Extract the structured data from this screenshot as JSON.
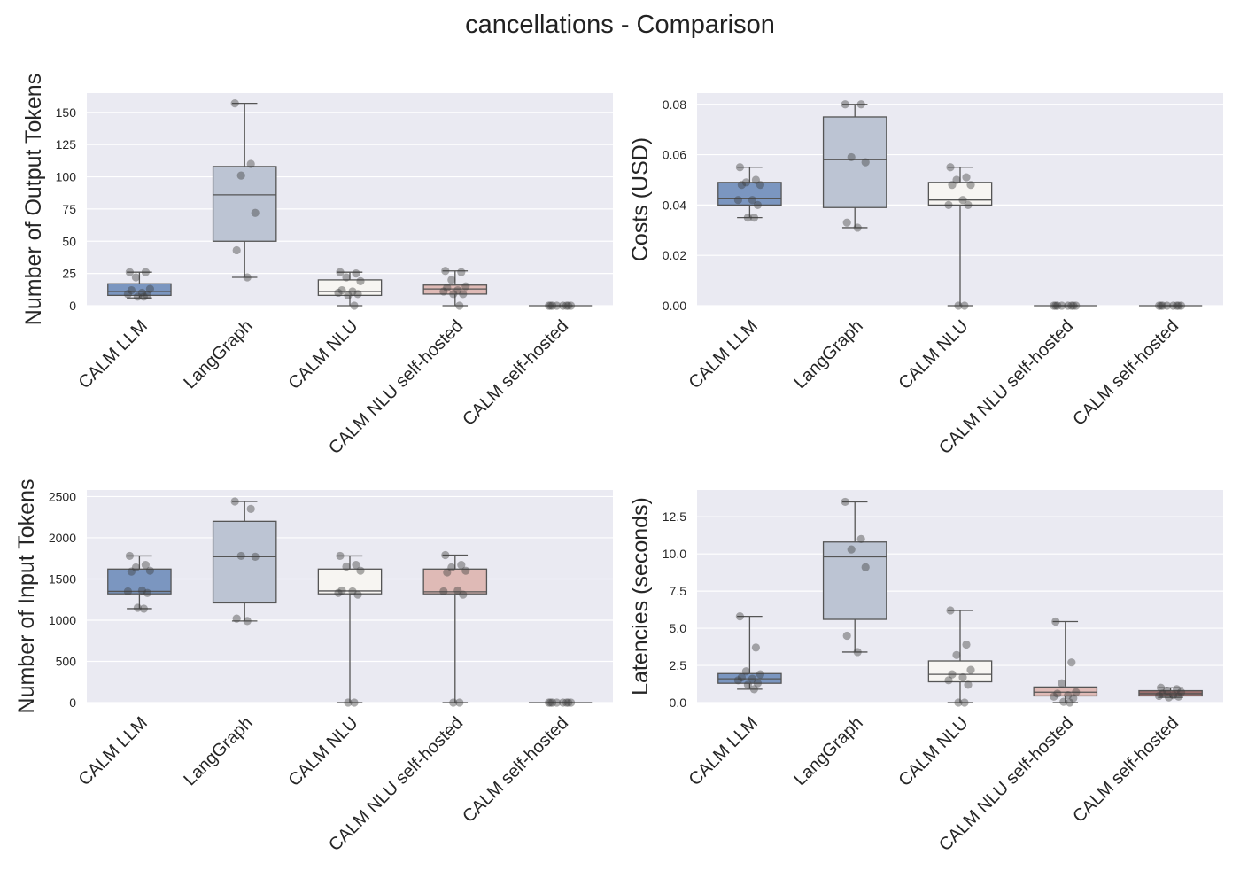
{
  "figure": {
    "title": "cancellations - Comparison"
  },
  "chart_data": [
    {
      "type": "box",
      "title": "",
      "xlabel": "",
      "ylabel": "Number of Output Tokens",
      "ylim": [
        0,
        165
      ],
      "yticks": [
        0,
        25,
        50,
        75,
        100,
        125,
        150
      ],
      "categories": [
        "CALM LLM",
        "LangGraph",
        "CALM NLU",
        "CALM NLU self-hosted",
        "CALM self-hosted"
      ],
      "colors": [
        "#7b96c0",
        "#bcc4d3",
        "#f7f5f2",
        "#dfbab6",
        "#9c6f6d"
      ],
      "boxes": [
        {
          "q1": 8,
          "median": 11,
          "q3": 17,
          "whislo": 6,
          "whishi": 26
        },
        {
          "q1": 50,
          "median": 86,
          "q3": 108,
          "whislo": 22,
          "whishi": 157
        },
        {
          "q1": 8,
          "median": 11,
          "q3": 20,
          "whislo": 0,
          "whishi": 26
        },
        {
          "q1": 9,
          "median": 13,
          "q3": 16,
          "whislo": 0,
          "whishi": 27
        },
        {
          "q1": 0,
          "median": 0,
          "q3": 0,
          "whislo": 0,
          "whishi": 0
        }
      ],
      "points": [
        [
          26,
          26,
          22,
          13,
          12,
          10,
          9,
          8,
          7,
          7
        ],
        [
          157,
          110,
          101,
          72,
          43,
          22
        ],
        [
          26,
          25,
          22,
          19,
          12,
          11,
          10,
          9,
          8,
          0
        ],
        [
          27,
          26,
          20,
          15,
          14,
          12,
          11,
          9,
          9,
          0
        ],
        [
          0,
          0,
          0,
          0,
          0,
          0,
          0,
          0
        ]
      ]
    },
    {
      "type": "box",
      "title": "",
      "xlabel": "",
      "ylabel": "Costs (USD)",
      "ylim": [
        0,
        0.0845
      ],
      "yticks": [
        0.0,
        0.02,
        0.04,
        0.06,
        0.08
      ],
      "yformat": 2,
      "categories": [
        "CALM LLM",
        "LangGraph",
        "CALM NLU",
        "CALM NLU self-hosted",
        "CALM self-hosted"
      ],
      "colors": [
        "#7b96c0",
        "#bcc4d3",
        "#f7f5f2",
        "#dfbab6",
        "#9c6f6d"
      ],
      "boxes": [
        {
          "q1": 0.04,
          "median": 0.0425,
          "q3": 0.049,
          "whislo": 0.035,
          "whishi": 0.055
        },
        {
          "q1": 0.039,
          "median": 0.058,
          "q3": 0.075,
          "whislo": 0.031,
          "whishi": 0.08
        },
        {
          "q1": 0.04,
          "median": 0.042,
          "q3": 0.049,
          "whislo": 0.0,
          "whishi": 0.055
        },
        {
          "q1": 0.0,
          "median": 0.0,
          "q3": 0.0,
          "whislo": 0.0,
          "whishi": 0.0
        },
        {
          "q1": 0.0,
          "median": 0.0,
          "q3": 0.0,
          "whislo": 0.0,
          "whishi": 0.0
        }
      ],
      "points": [
        [
          0.055,
          0.05,
          0.049,
          0.048,
          0.048,
          0.042,
          0.042,
          0.04,
          0.035,
          0.035
        ],
        [
          0.08,
          0.08,
          0.059,
          0.057,
          0.033,
          0.031
        ],
        [
          0.055,
          0.051,
          0.05,
          0.048,
          0.048,
          0.042,
          0.04,
          0.04,
          0.0,
          0.0
        ],
        [
          0.0,
          0.0,
          0.0,
          0.0,
          0.0,
          0.0,
          0.0,
          0.0
        ],
        [
          0.0,
          0.0,
          0.0,
          0.0,
          0.0,
          0.0,
          0.0,
          0.0
        ]
      ]
    },
    {
      "type": "box",
      "title": "",
      "xlabel": "",
      "ylabel": "Number of Input Tokens",
      "ylim": [
        0,
        2580
      ],
      "yticks": [
        0,
        500,
        1000,
        1500,
        2000,
        2500
      ],
      "categories": [
        "CALM LLM",
        "LangGraph",
        "CALM NLU",
        "CALM NLU self-hosted",
        "CALM self-hosted"
      ],
      "colors": [
        "#7b96c0",
        "#bcc4d3",
        "#f7f5f2",
        "#dfbab6",
        "#9c6f6d"
      ],
      "boxes": [
        {
          "q1": 1320,
          "median": 1350,
          "q3": 1620,
          "whislo": 1140,
          "whishi": 1780
        },
        {
          "q1": 1210,
          "median": 1770,
          "q3": 2200,
          "whislo": 990,
          "whishi": 2440
        },
        {
          "q1": 1320,
          "median": 1355,
          "q3": 1620,
          "whislo": 0,
          "whishi": 1780
        },
        {
          "q1": 1320,
          "median": 1345,
          "q3": 1620,
          "whislo": 0,
          "whishi": 1790
        },
        {
          "q1": 0,
          "median": 0,
          "q3": 0,
          "whislo": 0,
          "whishi": 0
        }
      ],
      "points": [
        [
          1780,
          1670,
          1640,
          1600,
          1590,
          1360,
          1350,
          1330,
          1150,
          1140
        ],
        [
          2440,
          2350,
          1780,
          1770,
          1020,
          990
        ],
        [
          1780,
          1670,
          1650,
          1600,
          1360,
          1350,
          1330,
          1310,
          0,
          0
        ],
        [
          1790,
          1670,
          1640,
          1600,
          1580,
          1360,
          1350,
          1310,
          0,
          0
        ],
        [
          0,
          0,
          0,
          0,
          0,
          0,
          0,
          0
        ]
      ]
    },
    {
      "type": "box",
      "title": "",
      "xlabel": "",
      "ylabel": "Latencies (seconds)",
      "ylim": [
        0,
        14.3
      ],
      "yticks": [
        0.0,
        2.5,
        5.0,
        7.5,
        10.0,
        12.5
      ],
      "yformat": 1,
      "categories": [
        "CALM LLM",
        "LangGraph",
        "CALM NLU",
        "CALM NLU self-hosted",
        "CALM self-hosted"
      ],
      "colors": [
        "#7b96c0",
        "#bcc4d3",
        "#f7f5f2",
        "#dfbab6",
        "#9c6f6d"
      ],
      "boxes": [
        {
          "q1": 1.3,
          "median": 1.6,
          "q3": 1.95,
          "whislo": 0.9,
          "whishi": 5.8
        },
        {
          "q1": 5.6,
          "median": 9.8,
          "q3": 10.8,
          "whislo": 3.4,
          "whishi": 13.5
        },
        {
          "q1": 1.4,
          "median": 1.9,
          "q3": 2.8,
          "whislo": 0.0,
          "whishi": 6.2
        },
        {
          "q1": 0.45,
          "median": 0.7,
          "q3": 1.05,
          "whislo": 0.0,
          "whishi": 5.45
        },
        {
          "q1": 0.45,
          "median": 0.6,
          "q3": 0.8,
          "whislo": 0.35,
          "whishi": 1.0
        }
      ],
      "points": [
        [
          5.8,
          3.7,
          2.1,
          1.9,
          1.7,
          1.6,
          1.5,
          1.3,
          1.2,
          0.9
        ],
        [
          13.5,
          11.0,
          10.3,
          9.1,
          4.5,
          3.4
        ],
        [
          6.2,
          3.9,
          3.2,
          2.2,
          1.9,
          1.7,
          1.5,
          1.2,
          0.0,
          0.0
        ],
        [
          5.45,
          2.7,
          1.3,
          0.7,
          0.6,
          0.5,
          0.4,
          0.3,
          0.05,
          0.0
        ],
        [
          1.0,
          0.9,
          0.8,
          0.7,
          0.6,
          0.5,
          0.45,
          0.4,
          0.35
        ]
      ]
    }
  ]
}
